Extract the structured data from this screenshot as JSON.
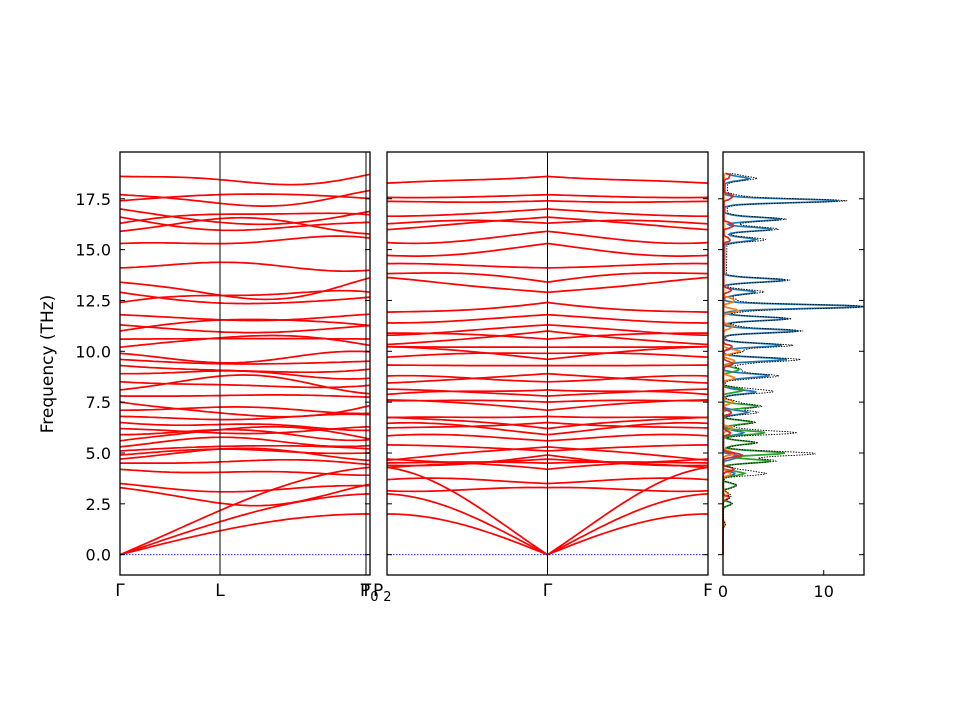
{
  "chart_data": {
    "type": "line",
    "ylabel": "Frequency (THz)",
    "ylim": [
      -1.0,
      19.8
    ],
    "yticks": [
      0.0,
      2.5,
      5.0,
      7.5,
      10.0,
      12.5,
      15.0,
      17.5
    ],
    "ytick_labels": [
      "0.0",
      "2.5",
      "5.0",
      "7.5",
      "10.0",
      "12.5",
      "15.0",
      "17.5"
    ],
    "band_color": "#ff0000",
    "zero_line_color": "#0000ff",
    "panels": [
      {
        "name": "panel-1",
        "path": [
          "Γ",
          "L",
          "T"
        ],
        "ticks": [
          {
            "label": "Γ",
            "pos": 0.0
          },
          {
            "label": "L",
            "pos": 0.4
          },
          {
            "label": "T",
            "pos": 0.984
          },
          {
            "label": "P0",
            "pos": 1.0
          }
        ],
        "gamma_end": "start"
      },
      {
        "name": "panel-2",
        "path": [
          "P2",
          "Γ",
          "F"
        ],
        "ticks": [
          {
            "label": "P2",
            "pos": 0.0
          },
          {
            "label": "Γ",
            "pos": 0.5
          },
          {
            "label": "F",
            "pos": 1.0
          }
        ],
        "gamma_pos": 0.5
      }
    ],
    "optical_frequencies_at_start": [
      3.3,
      3.5,
      4.2,
      4.5,
      4.7,
      4.9,
      5.1,
      5.3,
      5.6,
      5.9,
      6.2,
      6.5,
      6.8,
      7.1,
      7.5,
      7.8,
      8.1,
      8.5,
      8.9,
      9.3,
      9.6,
      9.9,
      10.2,
      10.6,
      11.0,
      11.3,
      11.8,
      12.4,
      12.9,
      13.4,
      14.1,
      15.3,
      15.9,
      16.3,
      16.6,
      17.0,
      17.4,
      17.7,
      18.6
    ],
    "acoustic_max": [
      2.0,
      2.6,
      3.3
    ],
    "dos": {
      "xlim": [
        0,
        14
      ],
      "xticks": [
        0,
        10
      ],
      "xtick_labels": [
        "0",
        "10"
      ],
      "series": [
        {
          "color": "#1f77b4",
          "peaks": [
            [
              18.5,
              2.2
            ],
            [
              17.4,
              11.0
            ],
            [
              16.5,
              5.5
            ],
            [
              16.0,
              4.5
            ],
            [
              15.5,
              3.0
            ],
            [
              13.5,
              6.0
            ],
            [
              12.9,
              3.0
            ],
            [
              12.2,
              13.8
            ],
            [
              11.6,
              6.0
            ],
            [
              11.0,
              7.0
            ],
            [
              10.3,
              5.5
            ],
            [
              9.6,
              6.0
            ],
            [
              8.8,
              4.5
            ],
            [
              8.0,
              3.0
            ],
            [
              7.0,
              2.2
            ],
            [
              6.0,
              1.8
            ],
            [
              4.8,
              1.5
            ],
            [
              4.0,
              1.0
            ]
          ],
          "floor": 0.2
        },
        {
          "color": "#2ca02c",
          "peaks": [
            [
              9.1,
              1.5
            ],
            [
              8.1,
              2.0
            ],
            [
              7.3,
              3.2
            ],
            [
              6.5,
              2.8
            ],
            [
              6.0,
              4.0
            ],
            [
              5.5,
              3.0
            ],
            [
              5.0,
              6.0
            ],
            [
              4.6,
              4.5
            ],
            [
              4.0,
              2.0
            ],
            [
              3.4,
              1.2
            ],
            [
              2.5,
              0.6
            ]
          ],
          "floor": 0.05
        },
        {
          "color": "#ff7f0e",
          "peaks": [
            [
              12.5,
              1.0
            ],
            [
              12.0,
              1.2
            ],
            [
              11.2,
              0.8
            ],
            [
              10.0,
              1.4
            ],
            [
              9.5,
              1.0
            ],
            [
              8.7,
              0.9
            ],
            [
              7.5,
              0.8
            ],
            [
              6.2,
              0.7
            ],
            [
              5.0,
              0.9
            ],
            [
              4.0,
              0.6
            ],
            [
              3.0,
              0.4
            ],
            [
              1.5,
              0.2
            ]
          ],
          "floor": 0.1
        },
        {
          "color": "#d62728",
          "peaks": [
            [
              18.6,
              0.5
            ],
            [
              17.6,
              0.8
            ],
            [
              16.2,
              0.9
            ],
            [
              15.5,
              0.5
            ],
            [
              13.0,
              0.5
            ],
            [
              10.2,
              0.7
            ],
            [
              9.4,
              0.8
            ],
            [
              7.0,
              0.6
            ],
            [
              6.0,
              0.5
            ],
            [
              4.9,
              1.6
            ],
            [
              4.2,
              0.8
            ],
            [
              2.8,
              0.4
            ]
          ],
          "floor": 0.1
        }
      ],
      "total_color": "#000000"
    }
  }
}
